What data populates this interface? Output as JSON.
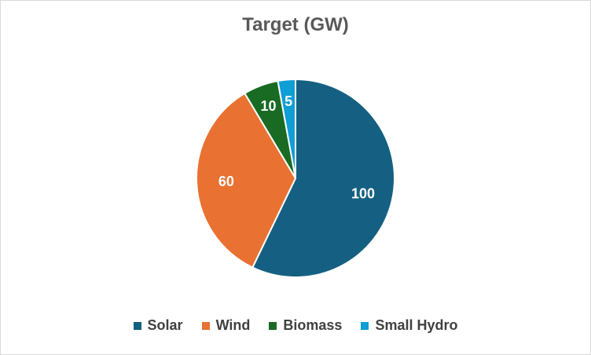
{
  "chart_data": {
    "type": "pie",
    "title": "Target (GW)",
    "categories": [
      "Solar",
      "Wind",
      "Biomass",
      "Small Hydro"
    ],
    "values": [
      100,
      60,
      10,
      5
    ],
    "colors": [
      "#156082",
      "#E97132",
      "#196B24",
      "#0F9ED5"
    ],
    "data_labels": [
      "100",
      "60",
      "10",
      "5"
    ],
    "legend_position": "bottom"
  }
}
